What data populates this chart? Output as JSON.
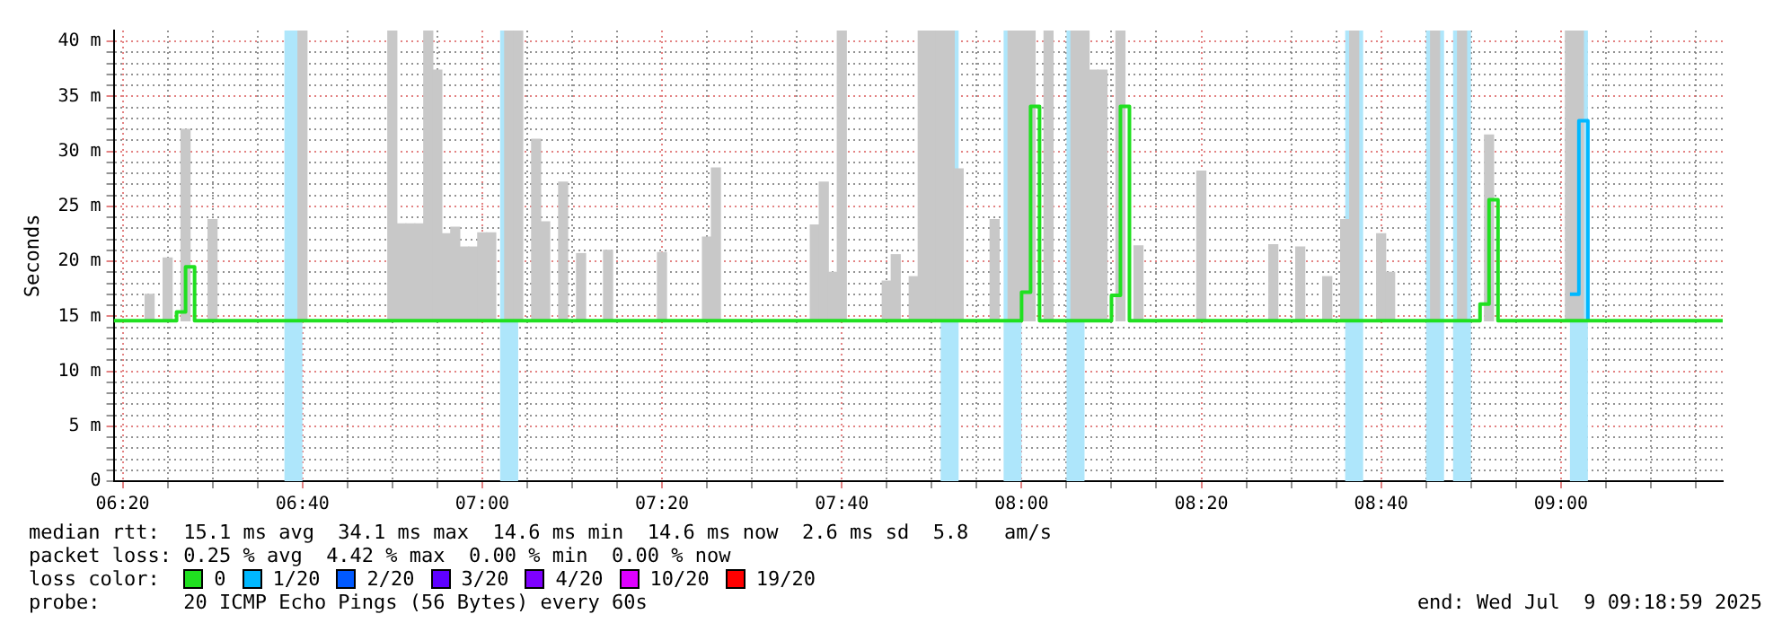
{
  "chart_data": {
    "type": "step",
    "ylabel": "Seconds",
    "legend_title": "loss color:",
    "legend": "bottom",
    "grid": true,
    "marker": "none",
    "line_style": "solid",
    "xlim": [
      6.3167,
      9.3
    ],
    "ylim": [
      0,
      41
    ],
    "xticks": [
      {
        "value": 6.3333,
        "label": "06:20"
      },
      {
        "value": 6.4167,
        "label": null
      },
      {
        "value": 6.5,
        "label": null
      },
      {
        "value": 6.5833,
        "label": null
      },
      {
        "value": 6.6667,
        "label": "06:40"
      },
      {
        "value": 6.75,
        "label": null
      },
      {
        "value": 6.8333,
        "label": null
      },
      {
        "value": 6.9167,
        "label": null
      },
      {
        "value": 7,
        "label": "07:00"
      },
      {
        "value": 7.0833,
        "label": null
      },
      {
        "value": 7.1667,
        "label": null
      },
      {
        "value": 7.25,
        "label": null
      },
      {
        "value": 7.3333,
        "label": "07:20"
      },
      {
        "value": 7.4167,
        "label": null
      },
      {
        "value": 7.5,
        "label": null
      },
      {
        "value": 7.5833,
        "label": null
      },
      {
        "value": 7.6667,
        "label": "07:40"
      },
      {
        "value": 7.75,
        "label": null
      },
      {
        "value": 7.8333,
        "label": null
      },
      {
        "value": 7.9167,
        "label": null
      },
      {
        "value": 8,
        "label": "08:00"
      },
      {
        "value": 8.0833,
        "label": null
      },
      {
        "value": 8.1667,
        "label": null
      },
      {
        "value": 8.25,
        "label": null
      },
      {
        "value": 8.3333,
        "label": "08:20"
      },
      {
        "value": 8.4167,
        "label": null
      },
      {
        "value": 8.5,
        "label": null
      },
      {
        "value": 8.5833,
        "label": null
      },
      {
        "value": 8.6667,
        "label": "08:40"
      },
      {
        "value": 8.75,
        "label": null
      },
      {
        "value": 8.8333,
        "label": null
      },
      {
        "value": 8.9167,
        "label": null
      },
      {
        "value": 9,
        "label": "09:00"
      },
      {
        "value": 9.0833,
        "label": null
      },
      {
        "value": 9.1667,
        "label": null
      },
      {
        "value": 9.25,
        "label": null
      }
    ],
    "yticks": [
      0,
      {
        "value": 1,
        "label": null
      },
      {
        "value": 2,
        "label": null
      },
      {
        "value": 3,
        "label": null
      },
      {
        "value": 4,
        "label": null
      },
      {
        "value": 5,
        "label": "5 m"
      },
      {
        "value": 6,
        "label": null
      },
      {
        "value": 7,
        "label": null
      },
      {
        "value": 8,
        "label": null
      },
      {
        "value": 9,
        "label": null
      },
      {
        "value": 10,
        "label": "10 m"
      },
      {
        "value": 11,
        "label": null
      },
      {
        "value": 12,
        "label": null
      },
      {
        "value": 13,
        "label": null
      },
      {
        "value": 14,
        "label": null
      },
      {
        "value": 15,
        "label": "15 m"
      },
      {
        "value": 16,
        "label": null
      },
      {
        "value": 17,
        "label": null
      },
      {
        "value": 18,
        "label": null
      },
      {
        "value": 19,
        "label": null
      },
      {
        "value": 20,
        "label": "20 m"
      },
      {
        "value": 21,
        "label": null
      },
      {
        "value": 22,
        "label": null
      },
      {
        "value": 23,
        "label": null
      },
      {
        "value": 24,
        "label": null
      },
      {
        "value": 25,
        "label": "25 m"
      },
      {
        "value": 26,
        "label": null
      },
      {
        "value": 27,
        "label": null
      },
      {
        "value": 28,
        "label": null
      },
      {
        "value": 29,
        "label": null
      },
      {
        "value": 30,
        "label": "30 m"
      },
      {
        "value": 31,
        "label": null
      },
      {
        "value": 32,
        "label": null
      },
      {
        "value": 33,
        "label": null
      },
      {
        "value": 34,
        "label": null
      },
      {
        "value": 35,
        "label": "35 m"
      },
      {
        "value": 36,
        "label": null
      },
      {
        "value": 37,
        "label": null
      },
      {
        "value": 38,
        "label": null
      },
      {
        "value": 39,
        "label": null
      },
      {
        "value": 40,
        "label": "40 m"
      }
    ],
    "bands": [
      {
        "axis": "x",
        "from": 6.6333,
        "to": 6.6667,
        "color": "#aee6fb"
      },
      {
        "axis": "x",
        "from": 7.0333,
        "to": 7.0667,
        "color": "#aee6fb"
      },
      {
        "axis": "x",
        "from": 7.85,
        "to": 7.8833,
        "color": "#aee6fb"
      },
      {
        "axis": "x",
        "from": 7.9667,
        "to": 8.0,
        "color": "#aee6fb"
      },
      {
        "axis": "x",
        "from": 8.0833,
        "to": 8.1167,
        "color": "#aee6fb"
      },
      {
        "axis": "x",
        "from": 8.6,
        "to": 8.6333,
        "color": "#aee6fb"
      },
      {
        "axis": "x",
        "from": 8.75,
        "to": 8.7833,
        "color": "#aee6fb"
      },
      {
        "axis": "x",
        "from": 8.8,
        "to": 8.8333,
        "color": "#aee6fb"
      },
      {
        "axis": "x",
        "from": 9.0167,
        "to": 9.05,
        "color": "#aee6fb"
      }
    ],
    "series": [
      {
        "type": "bar",
        "color": "#c8c8c8",
        "base": [
          14.6,
          14.6,
          14.6,
          14.6,
          14.6,
          14.6,
          14.6,
          14.6,
          14.6,
          14.6,
          14.6,
          14.6,
          14.6,
          14.6,
          14.6,
          14.6,
          14.6,
          14.6,
          14.6,
          14.6,
          14.6,
          14.6,
          14.6,
          14.6,
          14.6,
          14.6,
          14.6,
          14.6,
          14.6,
          14.6,
          14.6,
          14.6,
          14.6,
          14.6,
          14.6,
          14.6,
          14.6,
          14.6,
          14.6,
          14.6,
          14.6,
          14.6,
          14.6,
          14.6,
          14.6,
          14.6,
          14.6,
          14.6,
          14.6,
          14.6,
          14.6,
          14.6,
          14.6,
          14.6,
          14.6,
          14.6,
          14.6,
          14.6,
          14.6,
          14.6,
          14.6,
          14.6,
          14.6
        ],
        "x": [
          6.3833,
          6.4167,
          6.45,
          6.5,
          6.6667,
          6.8333,
          6.85,
          6.8667,
          6.8833,
          6.9,
          6.9167,
          6.9333,
          6.95,
          6.9667,
          6.9833,
          7.0,
          7.0167,
          7.05,
          7.0667,
          7.1,
          7.1167,
          7.15,
          7.1833,
          7.2333,
          7.3333,
          7.4167,
          7.4333,
          7.6167,
          7.6333,
          7.65,
          7.6667,
          7.75,
          7.7667,
          7.8,
          7.8167,
          7.8333,
          7.85,
          7.8667,
          7.8833,
          7.95,
          7.9833,
          8.0,
          8.0167,
          8.05,
          8.1,
          8.1167,
          8.1333,
          8.15,
          8.1833,
          8.2167,
          8.3333,
          8.4667,
          8.5167,
          8.5667,
          8.6,
          8.6167,
          8.6667,
          8.6833,
          8.7667,
          8.8167,
          8.8667,
          9.0167,
          9.0333
        ],
        "values": [
          2.4,
          5.7,
          17.4,
          9.2,
          26.4,
          26.4,
          8.8,
          8.8,
          8.8,
          26.4,
          22.8,
          7.9,
          8.5,
          6.7,
          6.7,
          8.0,
          8.0,
          26.4,
          26.4,
          16.5,
          9.0,
          12.6,
          6.1,
          6.4,
          6.2,
          7.6,
          13.9,
          8.7,
          12.6,
          4.4,
          26.4,
          3.6,
          6.0,
          4.0,
          26.4,
          26.4,
          26.4,
          26.4,
          13.8,
          9.2,
          26.4,
          26.4,
          26.4,
          26.4,
          26.4,
          26.4,
          22.8,
          22.8,
          26.4,
          6.8,
          13.6,
          6.9,
          6.7,
          4.0,
          9.2,
          26.4,
          7.9,
          4.4,
          26.4,
          26.4,
          16.9,
          26.4,
          26.4
        ]
      },
      {
        "name": "0",
        "color": "#20e020",
        "x": [
          6.3167,
          6.4333,
          6.45,
          6.4667,
          8.0,
          8.0167,
          8.0333,
          8.1667,
          8.1833,
          8.2,
          8.85,
          8.8667,
          8.8833,
          9.05,
          9.3
        ],
        "values": [
          14.6,
          15.4,
          19.5,
          14.6,
          17.2,
          34.1,
          14.6,
          16.9,
          34.1,
          14.6,
          16.1,
          25.6,
          14.6,
          14.6,
          14.6
        ]
      },
      {
        "name": "1/20",
        "color": "#00b8ff",
        "x": [
          9.0167,
          9.0333,
          9.05
        ],
        "values": [
          17.0,
          32.8,
          14.6
        ]
      },
      {
        "name": "2/20",
        "color": "#0059ff"
      },
      {
        "name": "3/20",
        "color": "#5e00ff"
      },
      {
        "name": "4/20",
        "color": "#7e00ff"
      },
      {
        "name": "10/20",
        "color": "#dd00ff"
      },
      {
        "name": "19/20",
        "color": "#ff0000"
      }
    ],
    "annotations": [
      "median rtt:  15.1 ms avg  34.1 ms max  14.6 ms min  14.6 ms now  2.6 ms sd  5.8   am/s",
      "packet loss: 0.25 % avg  4.42 % max  0.00 % min  0.00 % now",
      "probe:       20 ICMP Echo Pings (56 Bytes) every 60s",
      "end: Wed Jul  9 09:18:59 2025"
    ]
  }
}
